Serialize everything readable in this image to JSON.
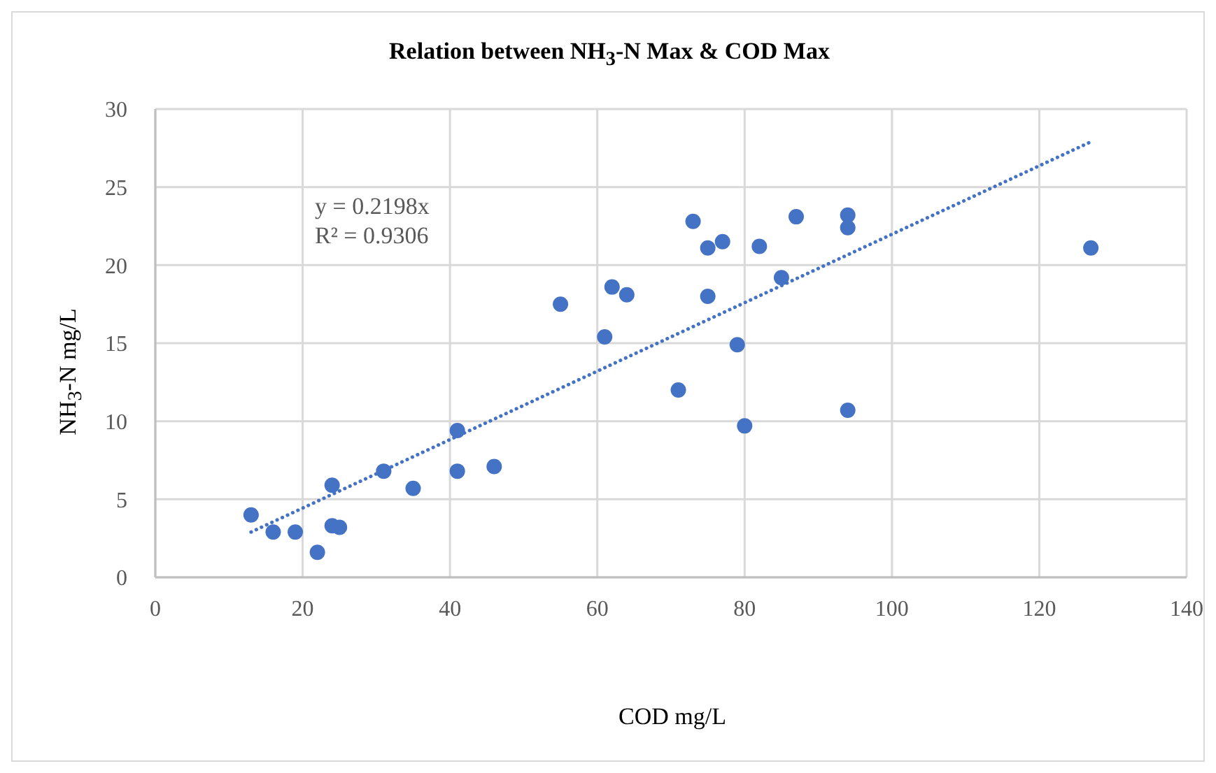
{
  "chart_data": {
    "type": "scatter",
    "title": "Relation between NH$_{3}$-N Max & COD Max",
    "xlabel": "COD mg/L",
    "ylabel": "NH$_{3}$-N mg/L",
    "annotations": [
      "y = 0.2198x",
      "R² = 0.9306"
    ],
    "x": [
      13,
      16,
      19,
      22,
      24,
      24,
      25,
      31,
      35,
      41,
      41,
      46,
      55,
      61,
      62,
      64,
      71,
      73,
      75,
      75,
      77,
      79,
      80,
      82,
      85,
      87,
      94,
      94,
      94,
      127
    ],
    "series": [
      {
        "color": "#4472c4",
        "marker": "circle",
        "values": [
          4.0,
          2.9,
          2.9,
          1.6,
          5.9,
          3.3,
          3.2,
          6.8,
          5.7,
          9.4,
          6.8,
          7.1,
          17.5,
          15.4,
          18.6,
          18.1,
          12.0,
          22.8,
          21.1,
          18.0,
          21.5,
          14.9,
          9.7,
          21.2,
          19.2,
          23.1,
          23.2,
          22.4,
          10.7,
          21.1
        ]
      },
      {
        "type": "line",
        "color": "#4472c4",
        "line_style": "dotted",
        "marker": "none",
        "x": [
          13,
          127
        ],
        "values": [
          2.9,
          27.9
        ]
      }
    ],
    "xlim": [
      0,
      140
    ],
    "xticks": [
      0,
      20,
      40,
      60,
      80,
      100,
      120,
      140
    ],
    "ylim": [
      0,
      30
    ],
    "yticks": [
      0,
      5,
      10,
      15,
      20,
      25,
      30
    ],
    "grid": true,
    "legend": false
  }
}
